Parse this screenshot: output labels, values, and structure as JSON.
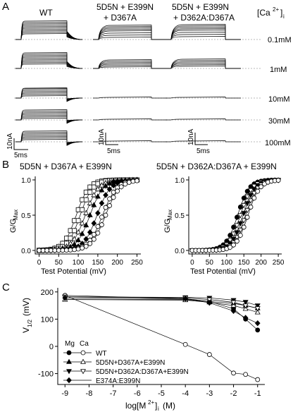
{
  "panel_a": {
    "label": "A",
    "columns": [
      {
        "id": "wt",
        "lines": [
          "WT"
        ]
      },
      {
        "id": "d367a",
        "lines": [
          "5D5N + E399N",
          "+ D367A"
        ]
      },
      {
        "id": "d362a",
        "lines": [
          "5D5N + E399N",
          "+ D362A:D367A"
        ]
      }
    ],
    "ca_header": "[Ca",
    "ca_header_sup": "2+",
    "ca_header_sub": "i",
    "ca_header_bracket": "]",
    "concentrations": [
      "0.1mM",
      "1mM",
      "10mM",
      "30mM",
      "100mM"
    ],
    "scale_bars": [
      {
        "current": "10nA",
        "time": "5ms"
      },
      {
        "current": "10nA",
        "time": "5ms"
      },
      {
        "current": "10nA",
        "time": "5ms"
      }
    ]
  },
  "panel_b": {
    "label": "B",
    "charts": [
      {
        "title": "5D5N + D367A + E399N"
      },
      {
        "title": "5D5N + D362A:D367A + E399N"
      }
    ],
    "ylabel": "G/G",
    "ylabel_sub": "Max",
    "xlabel": "Test Potential (mV)",
    "yticks": [
      "0.0",
      "0.5",
      "1.0"
    ],
    "xticks": [
      "0",
      "50",
      "100",
      "150",
      "200",
      "250"
    ]
  },
  "panel_c": {
    "label": "C",
    "ylabel": "V",
    "ylabel_sub": "1/2",
    "ylabel_unit": "(mV)",
    "xlabel": "log[M",
    "xlabel_sup": "2+",
    "xlabel_sub": "i",
    "xlabel_unit": "(M)",
    "yticks": [
      "200",
      "100",
      "0",
      "-100"
    ],
    "xticks": [
      "-9",
      "-8",
      "-7",
      "-6",
      "-5",
      "-4",
      "-3",
      "-2",
      "-1"
    ],
    "legend_header": [
      "Mg",
      "Ca"
    ],
    "legend_entries": [
      "WT",
      "5D5N+D367A+E399N",
      "5D5N+D362A:D367A+E399N",
      "E374A:E399N"
    ]
  },
  "chart_data": [
    {
      "type": "scatter",
      "title": "5D5N + D367A + E399N",
      "xlabel": "Test Potential (mV)",
      "ylabel": "G/GMax",
      "xlim": [
        -10,
        260
      ],
      "ylim": [
        -0.05,
        1.05
      ],
      "grid": false,
      "series": [
        {
          "v_half": 95,
          "slope": 16,
          "marker": "open-square"
        },
        {
          "v_half": 105,
          "slope": 16,
          "marker": "open-square"
        },
        {
          "v_half": 118,
          "slope": 17,
          "marker": "open-triangle-up"
        },
        {
          "v_half": 130,
          "slope": 17,
          "marker": "filled-triangle-up"
        },
        {
          "v_half": 148,
          "slope": 17,
          "marker": "filled-diamond"
        },
        {
          "v_half": 162,
          "slope": 18,
          "marker": "open-circle"
        },
        {
          "v_half": 170,
          "slope": 18,
          "marker": "open-circle"
        }
      ]
    },
    {
      "type": "scatter",
      "title": "5D5N + D362A:D367A + E399N",
      "xlabel": "Test Potential (mV)",
      "ylabel": "G/GMax",
      "xlim": [
        -10,
        260
      ],
      "ylim": [
        -0.05,
        1.05
      ],
      "grid": false,
      "series": [
        {
          "v_half": 132,
          "slope": 17,
          "marker": "filled-circle"
        },
        {
          "v_half": 140,
          "slope": 17,
          "marker": "open-triangle-down"
        },
        {
          "v_half": 148,
          "slope": 17,
          "marker": "filled-triangle-down"
        },
        {
          "v_half": 155,
          "slope": 17,
          "marker": "open-triangle-down"
        },
        {
          "v_half": 162,
          "slope": 17,
          "marker": "open-circle"
        }
      ]
    },
    {
      "type": "line",
      "xlabel": "log[M2+]i (M)",
      "ylabel": "V1/2 (mV)",
      "xlim": [
        -9.3,
        -0.7
      ],
      "ylim": [
        -140,
        215
      ],
      "legend_position": "bottom-left",
      "series": [
        {
          "name": "WT",
          "marker": "filled-circle",
          "x": [
            -9,
            -4,
            -3,
            -2,
            -1.5,
            -1
          ],
          "y": [
            187,
            175,
            165,
            138,
            100,
            60
          ]
        },
        {
          "name": "WT",
          "marker": "open-circle",
          "x": [
            -9,
            -4,
            -3,
            -2,
            -1.5,
            -1
          ],
          "y": [
            187,
            7,
            -30,
            -98,
            -103,
            -122
          ]
        },
        {
          "name": "5D5N+D367A+E399N",
          "marker": "filled-triangle-up",
          "x": [
            -9,
            -4,
            -3,
            -2,
            -1.5,
            -1
          ],
          "y": [
            172,
            172,
            165,
            158,
            150,
            140
          ]
        },
        {
          "name": "5D5N+D367A+E399N",
          "marker": "open-triangle-up",
          "x": [
            -9,
            -4,
            -3,
            -2,
            -1.5,
            -1
          ],
          "y": [
            172,
            170,
            162,
            150,
            138,
            125
          ]
        },
        {
          "name": "5D5N+D362A:D367A+E399N",
          "marker": "filled-triangle-down",
          "x": [
            -9,
            -4,
            -3,
            -2,
            -1.5,
            -1
          ],
          "y": [
            182,
            180,
            178,
            170,
            163,
            150
          ]
        },
        {
          "name": "5D5N+D362A:D367A+E399N",
          "marker": "open-triangle-down",
          "x": [
            -9,
            -4,
            -3,
            -2,
            -1.5,
            -1
          ],
          "y": [
            182,
            178,
            172,
            162,
            150,
            140
          ]
        },
        {
          "name": "E374A:E399N",
          "marker": "filled-diamond",
          "x": [
            -9,
            -4,
            -3,
            -2,
            -1.5,
            -1
          ],
          "y": [
            178,
            175,
            160,
            130,
            105,
            85
          ]
        }
      ]
    }
  ]
}
